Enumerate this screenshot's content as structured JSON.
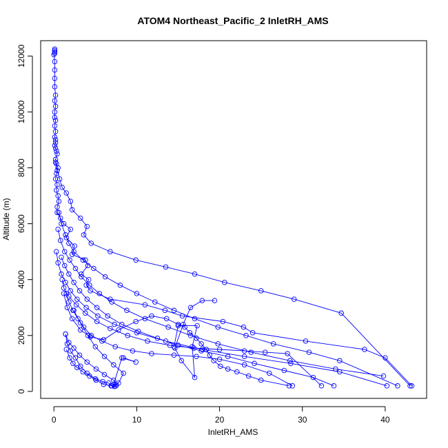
{
  "chart_data": {
    "type": "scatter",
    "title": "ATOM4 Northeast_Pacific_2 InletRH_AMS",
    "xlabel": "InletRH_AMS",
    "ylabel": "Altitude (m)",
    "xlim": [
      -1.6,
      45
    ],
    "ylim": [
      -250,
      12550
    ],
    "xticks": [
      0,
      10,
      20,
      30,
      40
    ],
    "yticks": [
      0,
      2000,
      4000,
      6000,
      8000,
      10000,
      12000
    ],
    "marker": "open-circle",
    "connect_points": true,
    "grid": false,
    "color": "#0000ff",
    "series": [
      {
        "x": [
          0.1,
          0.1,
          0.1,
          0.1,
          0.0,
          0.1,
          0.1,
          0.1,
          0.1,
          0.2,
          0.1,
          0.2,
          0.1,
          0.1,
          0.2,
          0.1,
          0.2,
          0.1,
          0.2,
          0.2,
          0.1,
          0.2,
          0.3,
          0.4,
          0.2,
          0.3,
          0.5,
          0.3,
          0.2,
          0.4,
          0.3,
          0.5,
          0.6,
          0.4,
          0.4,
          0.8,
          1.2,
          2.0,
          1.5,
          2.5,
          2.2,
          3.8,
          4.1,
          3.3,
          4.2,
          3.9,
          4.4,
          6.8,
          11.0,
          13.4,
          15.5,
          20.4,
          22.9,
          24.0,
          30.4,
          37.5,
          40.0,
          43.2
        ],
        "y": [
          12250,
          12200,
          12150,
          12100,
          12050,
          11800,
          11500,
          11200,
          10900,
          10600,
          10400,
          10200,
          10000,
          9800,
          9700,
          9500,
          9300,
          9100,
          9000,
          8900,
          8800,
          8700,
          8600,
          8500,
          8300,
          8150,
          8000,
          7800,
          7600,
          7400,
          7200,
          7000,
          6800,
          6600,
          6400,
          6200,
          6000,
          5800,
          5500,
          5200,
          4900,
          4700,
          4500,
          4200,
          4000,
          3800,
          3600,
          3300,
          3100,
          2900,
          2700,
          2500,
          2300,
          2100,
          1800,
          1500,
          1200,
          200
        ]
      },
      {
        "x": [
          0.2,
          0.4,
          0.7,
          1.0,
          1.5,
          2.0,
          2.2,
          3.2,
          4.0,
          3.6,
          4.5,
          6.8,
          9.9,
          13.5,
          17.0,
          20.6,
          25.0,
          29.0,
          34.7,
          43.0
        ],
        "y": [
          8200,
          7900,
          7600,
          7300,
          7100,
          6800,
          6500,
          6200,
          5900,
          5600,
          5300,
          5000,
          4700,
          4450,
          4200,
          3900,
          3600,
          3300,
          2800,
          200
        ]
      },
      {
        "x": [
          0.6,
          0.9,
          1.4,
          1.8,
          2.4,
          3.5,
          4.8,
          6.2,
          8.0,
          10.0,
          12.2,
          14.5,
          17.0,
          19.8,
          23.2,
          26.5,
          30.8,
          34.5,
          41.5
        ],
        "y": [
          6400,
          6000,
          5600,
          5300,
          5000,
          4700,
          4400,
          4100,
          3800,
          3500,
          3200,
          2900,
          2600,
          2300,
          2000,
          1700,
          1400,
          1100,
          200
        ]
      },
      {
        "x": [
          0.5,
          0.8,
          1.3,
          1.9,
          2.6,
          3.3,
          4.3,
          5.5,
          7.0,
          8.8,
          11.0,
          13.8,
          16.5,
          19.8,
          23.8,
          28.5,
          34.0,
          39.8
        ],
        "y": [
          5800,
          5400,
          5000,
          4700,
          4400,
          4100,
          3800,
          3500,
          3200,
          2900,
          2600,
          2300,
          2000,
          1700,
          1400,
          1100,
          800,
          550
        ]
      },
      {
        "x": [
          0.3,
          0.5,
          0.9,
          1.4,
          2.0,
          2.8,
          3.9,
          5.3,
          7.3,
          10.0,
          13.5,
          17.9,
          23.0,
          28.6,
          34.5,
          40.2
        ],
        "y": [
          5000,
          4600,
          4200,
          3900,
          3600,
          3300,
          3000,
          2700,
          2400,
          2100,
          1800,
          1500,
          1250,
          1000,
          700,
          200
        ]
      },
      {
        "x": [
          0.9,
          1.3,
          1.8,
          2.4,
          3.1,
          4.0,
          5.2,
          6.5,
          8.2,
          10.2,
          12.5,
          15.0,
          17.8,
          21.0,
          24.2,
          27.8,
          31.3,
          33.8
        ],
        "y": [
          4800,
          4500,
          4200,
          3900,
          3600,
          3300,
          3000,
          2700,
          2400,
          2150,
          1900,
          1650,
          1450,
          1250,
          1000,
          750,
          500,
          200
        ]
      },
      {
        "x": [
          1.0,
          1.2,
          1.8,
          2.7,
          3.8,
          5.2,
          6.8,
          8.9,
          11.3,
          14.0,
          16.9,
          20.0,
          23.0,
          25.5,
          28.2,
          32.3
        ],
        "y": [
          4000,
          3700,
          3400,
          3100,
          2800,
          2500,
          2250,
          2000,
          1800,
          1650,
          1550,
          1500,
          1450,
          1400,
          1350,
          200
        ]
      },
      {
        "x": [
          1.5,
          1.8,
          2.3,
          2.9,
          3.6,
          4.5,
          5.8,
          7.4,
          9.5,
          11.8,
          14.5,
          17.2,
          20.0,
          23.0,
          26.0,
          28.8
        ],
        "y": [
          3500,
          3200,
          2900,
          2600,
          2300,
          2000,
          1800,
          1600,
          1450,
          1350,
          1300,
          1250,
          1150,
          950,
          650,
          200
        ]
      },
      {
        "x": [
          1.2,
          1.6,
          2.2,
          3.2,
          4.4,
          6.0,
          7.8,
          9.9,
          11.8,
          13.6,
          15.0,
          15.8,
          16.4,
          17.2,
          17.8,
          18.4,
          18.8,
          19.3,
          20.1,
          21.0,
          22.1,
          23.5,
          25.0,
          28.4
        ],
        "y": [
          3500,
          3000,
          2600,
          2200,
          1950,
          1850,
          2200,
          2500,
          2700,
          2600,
          2400,
          2300,
          2100,
          1900,
          1700,
          1500,
          1300,
          1100,
          900,
          800,
          700,
          550,
          400,
          200
        ]
      },
      {
        "x": [
          2.4,
          3.2,
          4.1,
          5.0,
          6.1,
          7.2,
          8.4,
          7.8,
          6.9,
          6.0,
          5.1,
          4.3,
          3.5,
          2.8,
          2.3,
          1.9,
          1.5
        ],
        "y": [
          2900,
          2450,
          2000,
          1600,
          1250,
          950,
          650,
          300,
          200,
          250,
          400,
          550,
          700,
          850,
          1000,
          1200,
          1500
        ]
      },
      {
        "x": [
          1.4,
          1.8,
          2.4,
          3.1,
          4.0,
          5.1,
          6.1,
          7.2,
          7.5,
          7.3,
          7.0,
          6.6,
          5.9,
          5.0,
          4.0,
          3.2,
          2.6,
          2.0,
          1.6,
          1.4
        ],
        "y": [
          2050,
          1750,
          1550,
          1300,
          1050,
          800,
          600,
          400,
          250,
          180,
          200,
          300,
          350,
          450,
          650,
          900,
          1200,
          1450,
          1700,
          2050
        ]
      },
      {
        "x": [
          8.4,
          9.9,
          8.2,
          7.2,
          7.5,
          7.3
        ],
        "y": [
          1200,
          1050,
          1200,
          250,
          200,
          180
        ]
      },
      {
        "x": [
          14.5,
          15.0,
          17.3,
          16.7,
          17.0,
          15.4,
          14.6,
          15.6,
          16.5,
          17.9,
          19.4
        ],
        "y": [
          1600,
          2350,
          2350,
          1600,
          500,
          1100,
          1550,
          2400,
          3000,
          3250,
          3250
        ]
      }
    ]
  }
}
